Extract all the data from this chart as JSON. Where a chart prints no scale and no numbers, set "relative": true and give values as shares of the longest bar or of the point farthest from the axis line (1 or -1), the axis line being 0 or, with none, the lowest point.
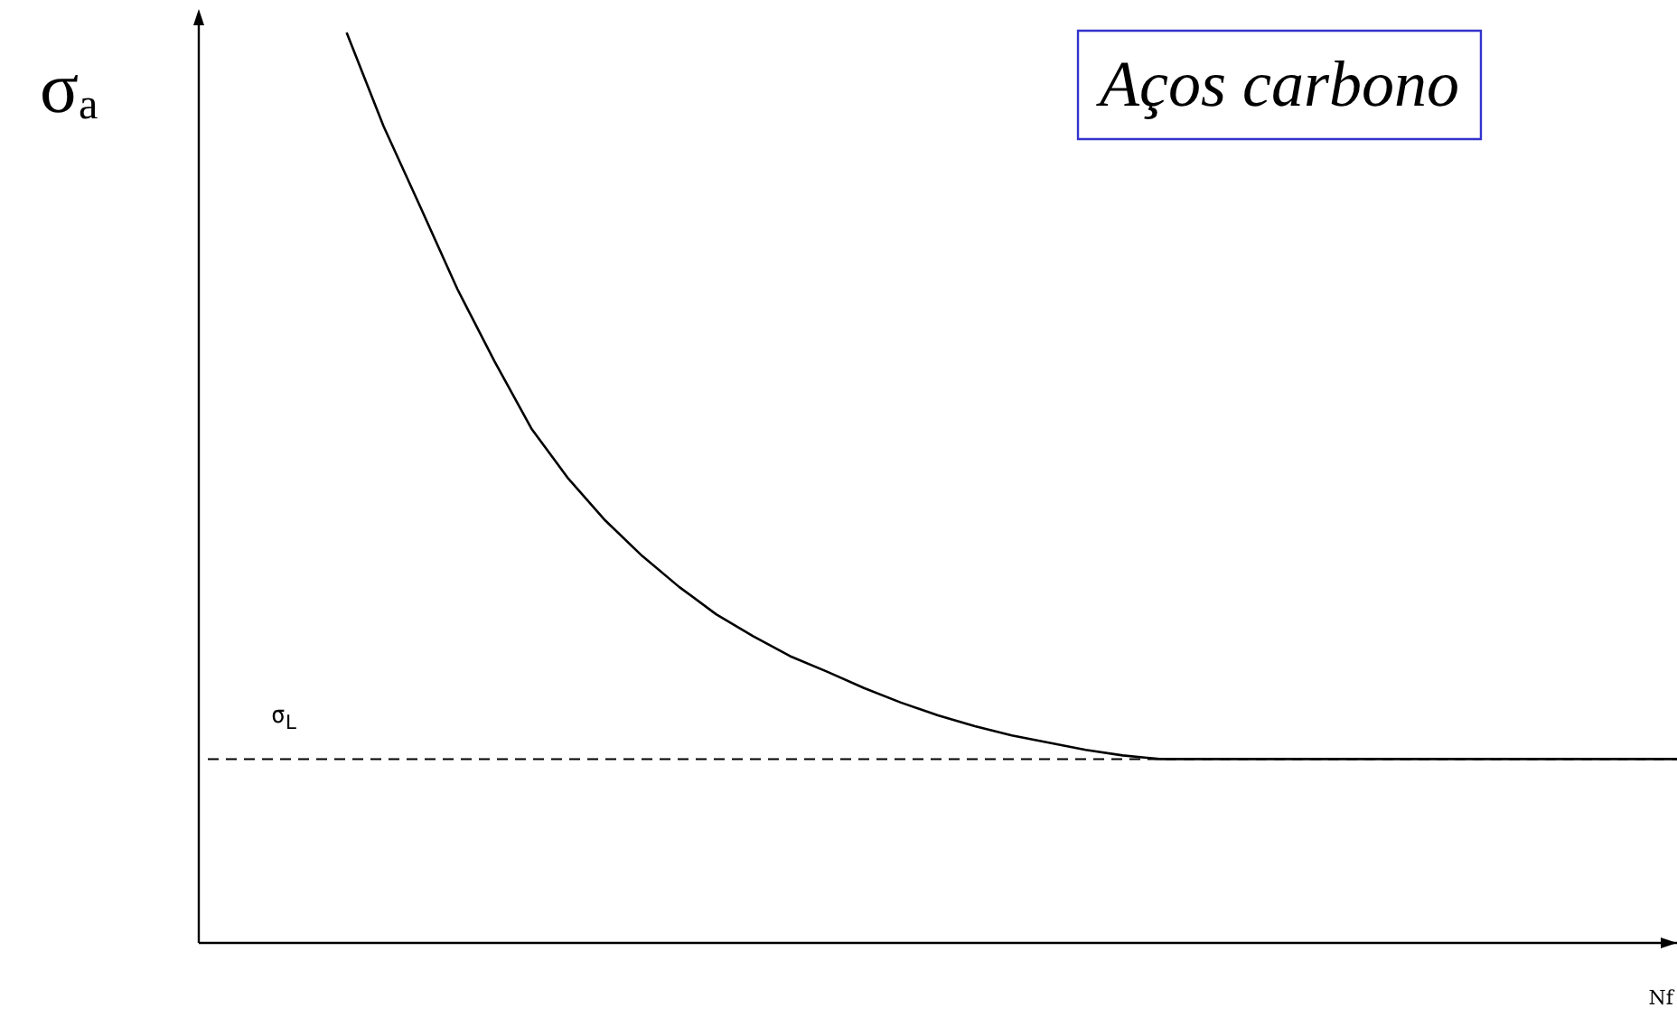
{
  "chart_data": {
    "type": "line",
    "relative": true,
    "xlabel": "Nf",
    "ylabel": "σₐ",
    "annotations": [
      "Aços carbono"
    ],
    "marker": "none",
    "line_style": "solid",
    "categories": [
      null,
      null,
      null,
      null,
      null,
      null,
      null,
      null,
      null,
      null,
      null,
      null,
      null,
      null,
      null,
      null,
      null,
      null,
      null,
      null,
      null,
      null,
      null,
      null,
      null,
      null,
      null,
      null,
      null,
      null,
      null,
      null,
      null,
      null,
      null,
      null,
      null,
      null,
      null,
      null,
      null
    ],
    "series": [
      {
        "color": "#000000",
        "values": [
          null,
          null,
          null,
          null,
          1.0,
          0.897,
          0.808,
          0.718,
          0.639,
          0.565,
          0.51,
          0.464,
          0.425,
          0.391,
          0.361,
          0.337,
          0.315,
          0.298,
          0.28,
          0.264,
          0.25,
          0.238,
          0.228,
          0.22,
          0.212,
          0.206,
          0.202,
          0.202,
          0.202,
          0.202,
          0.202,
          0.202,
          0.202,
          0.202,
          0.202,
          0.202,
          0.202,
          0.202,
          0.202,
          0.202,
          0.202
        ]
      }
    ],
    "ref_lines": [
      {
        "axis": "y",
        "value": 0.202,
        "label": "σ$_{L}$",
        "color": "#000000",
        "line_style": "dashed"
      }
    ]
  }
}
